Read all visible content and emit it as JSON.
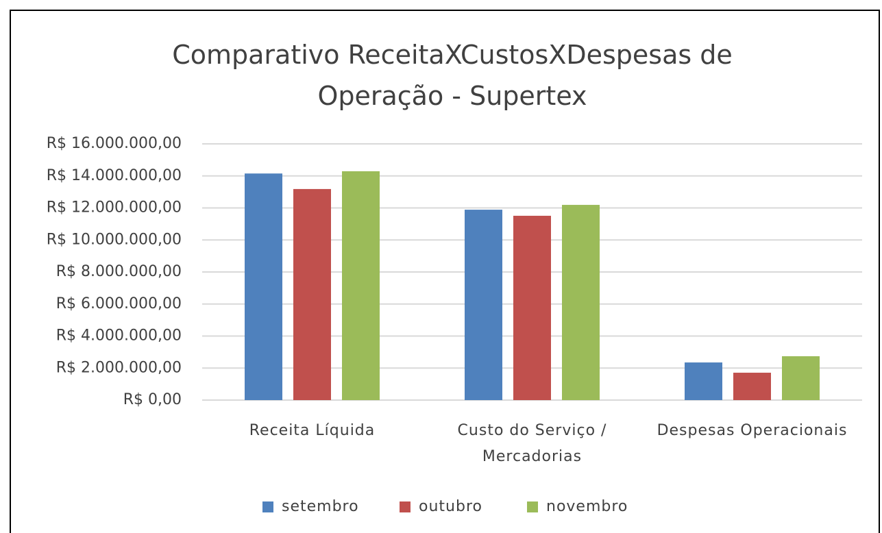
{
  "chart_data": {
    "type": "bar",
    "title": "Comparativo ReceitaXCustosXDespesas de Operação - Supertex",
    "categories": [
      "Receita Líquida",
      "Custo do Serviço / Mercadorias",
      "Despesas Operacionais"
    ],
    "series": [
      {
        "name": "setembro",
        "color": "#4f81bd",
        "values": [
          14150000,
          11890000,
          2350000
        ]
      },
      {
        "name": "outubro",
        "color": "#c0504d",
        "values": [
          13180000,
          11510000,
          1710000
        ]
      },
      {
        "name": "novembro",
        "color": "#9bbb59",
        "values": [
          14290000,
          12190000,
          2740000
        ]
      }
    ],
    "ylim": [
      0,
      16000000
    ],
    "yticks": [
      {
        "value": 0,
        "label": "R$ 0,00"
      },
      {
        "value": 2000000,
        "label": "R$ 2.000.000,00"
      },
      {
        "value": 4000000,
        "label": "R$ 4.000.000,00"
      },
      {
        "value": 6000000,
        "label": "R$ 6.000.000,00"
      },
      {
        "value": 8000000,
        "label": "R$ 8.000.000,00"
      },
      {
        "value": 10000000,
        "label": "R$ 10.000.000,00"
      },
      {
        "value": 12000000,
        "label": "R$ 12.000.000,00"
      },
      {
        "value": 14000000,
        "label": "R$ 14.000.000,00"
      },
      {
        "value": 16000000,
        "label": "R$ 16.000.000,00"
      }
    ],
    "grid": true,
    "legend": "bottom"
  }
}
